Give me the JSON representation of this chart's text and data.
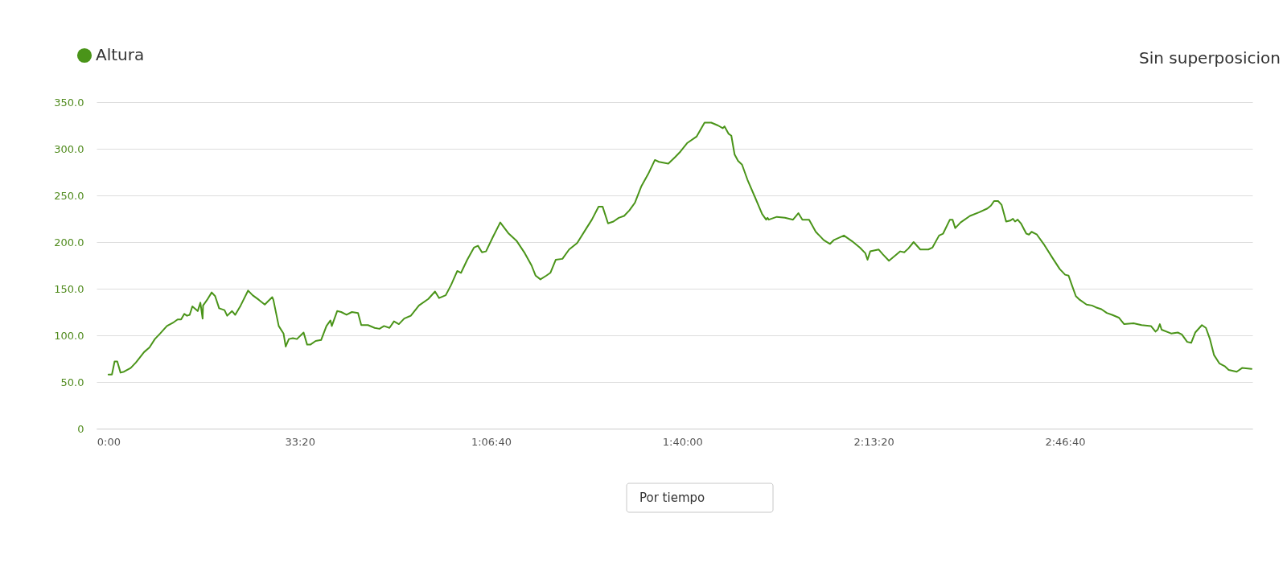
{
  "chart_data": {
    "type": "line",
    "x": [
      0,
      36,
      64,
      92,
      126,
      162,
      232,
      288,
      372,
      429,
      485,
      541,
      611,
      681,
      723,
      759,
      793,
      821,
      849,
      877,
      911,
      933,
      961,
      984,
      989,
      1031,
      1079,
      1115,
      1157,
      1213,
      1241,
      1292,
      1325,
      1382,
      1460,
      1507,
      1573,
      1634,
      1663,
      1712,
      1724,
      1780,
      1830,
      1853,
      1886,
      1928,
      1970,
      2040,
      2077,
      2110,
      2166,
      2223,
      2279,
      2321,
      2335,
      2391,
      2433,
      2489,
      2545,
      2609,
      2643,
      2713,
      2783,
      2833,
      2881,
      2938,
      2985,
      3036,
      3092,
      3161,
      3246,
      3344,
      3414,
      3456,
      3526,
      3582,
      3647,
      3686,
      3751,
      3821,
      3863,
      3905,
      3947,
      4017,
      4096,
      4185,
      4269,
      4353,
      4423,
      4466,
      4516,
      4578,
      4620,
      4676,
      4746,
      4816,
      4900,
      4998,
      5054,
      5124,
      5166,
      5223,
      5279,
      5335,
      5391,
      5446,
      5503,
      5572,
      5643,
      5713,
      5755,
      5853,
      5923,
      5980,
      6049,
      6148,
      6232,
      6302,
      6372,
      6422,
      6441,
      6484,
      6512,
      6546,
      6582,
      6624,
      6680,
      6764,
      6834,
      6876,
      6890,
      6904,
      6988,
      7072,
      7157,
      7213,
      7255,
      7325,
      7395,
      7479,
      7544,
      7582,
      7689,
      7773,
      7857,
      7913,
      7936,
      7964,
      8053,
      8095,
      8160,
      8208,
      8278,
      8320,
      8362,
      8418,
      8488,
      8572,
      8614,
      8684,
      8726,
      8797,
      8825,
      8853,
      8909,
      9007,
      9105,
      9189,
      9226,
      9259,
      9301,
      9337,
      9385,
      9428,
      9456,
      9478,
      9506,
      9540,
      9596,
      9624,
      9651,
      9707,
      9777,
      9876,
      9946,
      10002,
      10038,
      10072,
      10114,
      10156,
      10226,
      10282,
      10324,
      10381,
      10437,
      10493,
      10563,
      10619,
      10717,
      10801,
      10899,
      10947,
      10969,
      10992,
      11011,
      11110,
      11180,
      11222,
      11278,
      11320,
      11362,
      11432,
      11474,
      11516,
      11558,
      11614,
      11670,
      11712,
      11796,
      11852,
      11951
    ],
    "series": [
      {
        "name": "Altura",
        "color": "#4a9419",
        "values": [
          58,
          58,
          72,
          72,
          60,
          61,
          65,
          71,
          82,
          87,
          96,
          102,
          110,
          114,
          117,
          117,
          123,
          121,
          122,
          131,
          128,
          126,
          135,
          118,
          132,
          138,
          146,
          142,
          129,
          127,
          121,
          126,
          122,
          132,
          148,
          143,
          138,
          133,
          136,
          141,
          138,
          110,
          102,
          88,
          96,
          97,
          96,
          103,
          90,
          90,
          94,
          95,
          110,
          116,
          110,
          126,
          125,
          122,
          125,
          124,
          111,
          111,
          108,
          107,
          110,
          108,
          115,
          112,
          118,
          121,
          132,
          139,
          147,
          140,
          143,
          154,
          169,
          167,
          181,
          194,
          196,
          189,
          190,
          205,
          221,
          209,
          201,
          188,
          175,
          164,
          160,
          164,
          167,
          181,
          182,
          192,
          199,
          215,
          224,
          238,
          238,
          220,
          222,
          226,
          228,
          234,
          242,
          260,
          273,
          288,
          286,
          284,
          291,
          297,
          306,
          313,
          328,
          328,
          325,
          322,
          324,
          316,
          314,
          294,
          287,
          283,
          267,
          247,
          230,
          224,
          226,
          224,
          227,
          226,
          224,
          231,
          224,
          224,
          211,
          202,
          198,
          202,
          207,
          201,
          194,
          188,
          181,
          190,
          192,
          187,
          180,
          184,
          190,
          189,
          193,
          200,
          192,
          192,
          194,
          207,
          209,
          224,
          224,
          215,
          221,
          228,
          232,
          236,
          239,
          244,
          244,
          240,
          222,
          223,
          225,
          222,
          224,
          220,
          209,
          208,
          211,
          208,
          198,
          182,
          171,
          165,
          164,
          154,
          142,
          138,
          133,
          132,
          130,
          128,
          124,
          122,
          119,
          112,
          113,
          111,
          110,
          104,
          106,
          112,
          106,
          102,
          103,
          101,
          93,
          92,
          103,
          111,
          108,
          96,
          79,
          70,
          67,
          63,
          61,
          65,
          64
        ]
      }
    ],
    "xlim": [
      -125,
      11960
    ],
    "xticks": [
      {
        "value": 0,
        "label": "0:00"
      },
      {
        "value": 2000,
        "label": "33:20"
      },
      {
        "value": 4000,
        "label": "1:06:40"
      },
      {
        "value": 6000,
        "label": "1:40:00"
      },
      {
        "value": 8000,
        "label": "2:13:20"
      },
      {
        "value": 10000,
        "label": "2:46:40"
      }
    ],
    "ylim": [
      0,
      350
    ],
    "yticks": [
      0,
      {
        "value": 50,
        "label": "50.0"
      },
      {
        "value": 100,
        "label": "100.0"
      },
      {
        "value": 150,
        "label": "150.0"
      },
      {
        "value": 200,
        "label": "200.0"
      },
      {
        "value": 250,
        "label": "250.0"
      },
      {
        "value": 300,
        "label": "300.0"
      },
      {
        "value": 350,
        "label": "350.0"
      }
    ],
    "grid": "y",
    "legend": "top left",
    "annotations": [
      "Sin superposicion",
      "Por tiempo"
    ]
  }
}
